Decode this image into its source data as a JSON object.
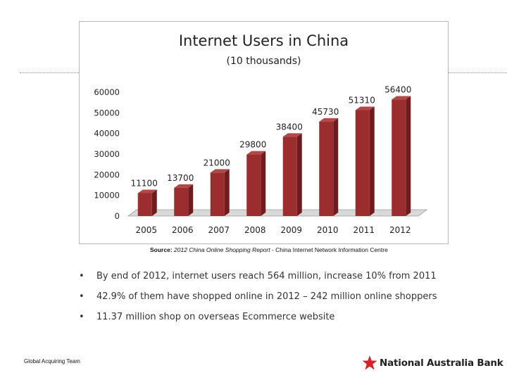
{
  "chart_data": {
    "type": "bar",
    "title": "Internet Users in China",
    "subtitle": "(10 thousands)",
    "categories": [
      "2005",
      "2006",
      "2007",
      "2008",
      "2009",
      "2010",
      "2011",
      "2012"
    ],
    "values": [
      11100,
      13700,
      21000,
      29800,
      38400,
      45730,
      51310,
      56400
    ],
    "yticks": [
      "0",
      "10000",
      "20000",
      "30000",
      "40000",
      "50000",
      "60000"
    ],
    "ylim": [
      0,
      60000
    ],
    "xlabel": "",
    "ylabel": "",
    "grid": false,
    "bar_color": "#9b2d2e",
    "bar_side_color": "#6e1c1d",
    "bar_top_color": "#b24848"
  },
  "source": {
    "prefix": "Source:",
    "italic": " 2012 China Online Shopping  Report",
    "rest": " - China Internet Network Information Centre"
  },
  "bullets": [
    "By end of 2012, internet users reach 564 million, increase 10% from 2011",
    "42.9% of them have shopped online in 2012 – 242 million online shoppers",
    "11.37 million shop on overseas Ecommerce website"
  ],
  "bullet_symbol": "•",
  "footer": {
    "team": "Global Acquiring Team"
  },
  "brand": {
    "name": "National Australia Bank",
    "star_color": "#d2232a",
    "icon": "nab-star-icon"
  }
}
